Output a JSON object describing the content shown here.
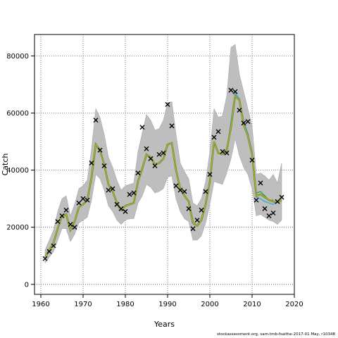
{
  "footer_text": "stockassessment.org, sam-tmb-fsaithe-2017-01 May, r10348",
  "chart_data": {
    "type": "line",
    "title": "",
    "xlabel": "Years",
    "ylabel": "Catch",
    "xlim": [
      1958.5,
      2020
    ],
    "ylim": [
      -3500,
      87500
    ],
    "grid": true,
    "x_ticks": [
      1960,
      1970,
      1980,
      1990,
      2000,
      2010,
      2020
    ],
    "y_ticks": [
      0,
      20000,
      40000,
      60000,
      80000
    ],
    "colors": {
      "band": "#bebebe",
      "main": "#6a8a2e",
      "overlay": "#ccbb33",
      "retro_blue": "#3fa9d9",
      "retro_green": "#2c9e5a",
      "observed": "#000000"
    },
    "estimate": {
      "x": [
        1961,
        1962,
        1963,
        1964,
        1965,
        1966,
        1967,
        1968,
        1969,
        1970,
        1971,
        1972,
        1973,
        1974,
        1975,
        1976,
        1977,
        1978,
        1979,
        1980,
        1981,
        1982,
        1983,
        1984,
        1985,
        1986,
        1987,
        1988,
        1989,
        1990,
        1991,
        1992,
        1993,
        1994,
        1995,
        1996,
        1997,
        1998,
        1999,
        2000,
        2001,
        2002,
        2003,
        2004,
        2005,
        2006,
        2007,
        2008,
        2009,
        2010,
        2011,
        2012,
        2013,
        2014,
        2015,
        2016,
        2017
      ],
      "y": [
        9500,
        12000,
        14500,
        19500,
        24000,
        24500,
        19000,
        22000,
        27000,
        28000,
        29500,
        37500,
        49000,
        47000,
        42000,
        35000,
        32500,
        28500,
        26000,
        27500,
        28000,
        28500,
        36000,
        40500,
        45500,
        44500,
        42000,
        42500,
        44000,
        49000,
        49500,
        40000,
        33500,
        31000,
        29000,
        21500,
        20500,
        22500,
        28000,
        36000,
        50000,
        46000,
        45500,
        47000,
        55000,
        66000,
        64500,
        56000,
        52000,
        45500,
        31000,
        31500,
        30500,
        29500,
        29000,
        28800,
        29500
      ],
      "lower": [
        7500,
        9500,
        11500,
        15500,
        19500,
        19500,
        15000,
        17500,
        21500,
        22500,
        23500,
        29500,
        38500,
        37000,
        33000,
        27500,
        25500,
        22500,
        21000,
        22500,
        23000,
        23000,
        28500,
        31000,
        35000,
        34000,
        32000,
        32500,
        33500,
        37500,
        38000,
        30000,
        25500,
        23000,
        22000,
        15500,
        15500,
        17000,
        21500,
        28000,
        36000,
        35500,
        35000,
        39000,
        44000,
        51000,
        45000,
        41000,
        38500,
        33500,
        24000,
        24500,
        23500,
        22500,
        22000,
        21000,
        22500
      ],
      "upper": [
        12000,
        15500,
        19000,
        25500,
        30000,
        31000,
        24000,
        28000,
        33500,
        34500,
        36500,
        47500,
        61500,
        58500,
        52500,
        44500,
        41000,
        36500,
        33000,
        34500,
        35000,
        35500,
        46500,
        53000,
        59500,
        57500,
        54000,
        54500,
        57500,
        63500,
        64000,
        52500,
        42500,
        39500,
        37000,
        28500,
        27500,
        30000,
        36000,
        46500,
        61500,
        58500,
        59000,
        66000,
        83000,
        84000,
        73500,
        67500,
        61500,
        55500,
        38500,
        39000,
        38000,
        36500,
        38500,
        35500,
        42500
      ]
    },
    "retro_lines": [
      {
        "x": [
          2004,
          2005,
          2006,
          2007,
          2008,
          2009,
          2010,
          2011,
          2012,
          2013,
          2014,
          2015,
          2016
        ],
        "y": [
          46000,
          57000,
          67000,
          65000,
          57000,
          53000,
          46500,
          30500,
          30000,
          29000,
          28500,
          28000,
          29000
        ],
        "color_key": "retro_blue"
      },
      {
        "x": [
          2011,
          2012,
          2013,
          2014,
          2015
        ],
        "y": [
          32000,
          32500,
          31000,
          29500,
          29500
        ],
        "color_key": "retro_green"
      }
    ],
    "observed": {
      "x": [
        1961,
        1962,
        1963,
        1964,
        1965,
        1966,
        1967,
        1968,
        1969,
        1970,
        1971,
        1972,
        1973,
        1974,
        1975,
        1976,
        1977,
        1978,
        1979,
        1980,
        1981,
        1982,
        1983,
        1984,
        1985,
        1986,
        1987,
        1988,
        1989,
        1990,
        1991,
        1992,
        1993,
        1994,
        1995,
        1996,
        1997,
        1998,
        1999,
        2000,
        2001,
        2002,
        2003,
        2004,
        2005,
        2006,
        2007,
        2008,
        2009,
        2010,
        2011,
        2012,
        2013,
        2014,
        2015,
        2016,
        2017
      ],
      "y": [
        9000,
        11500,
        13500,
        22000,
        24000,
        26000,
        21000,
        20000,
        28500,
        30000,
        29500,
        42500,
        57500,
        47000,
        41500,
        33000,
        33500,
        28000,
        26500,
        25500,
        31500,
        32000,
        39000,
        55000,
        47500,
        44000,
        41500,
        45500,
        46000,
        63000,
        55500,
        34500,
        33000,
        32500,
        26500,
        19500,
        22500,
        26000,
        32500,
        38500,
        51500,
        53500,
        46500,
        46000,
        68000,
        67500,
        61000,
        56500,
        57000,
        43500,
        29500,
        35500,
        26500,
        24000,
        25000,
        29000,
        30500
      ]
    }
  }
}
